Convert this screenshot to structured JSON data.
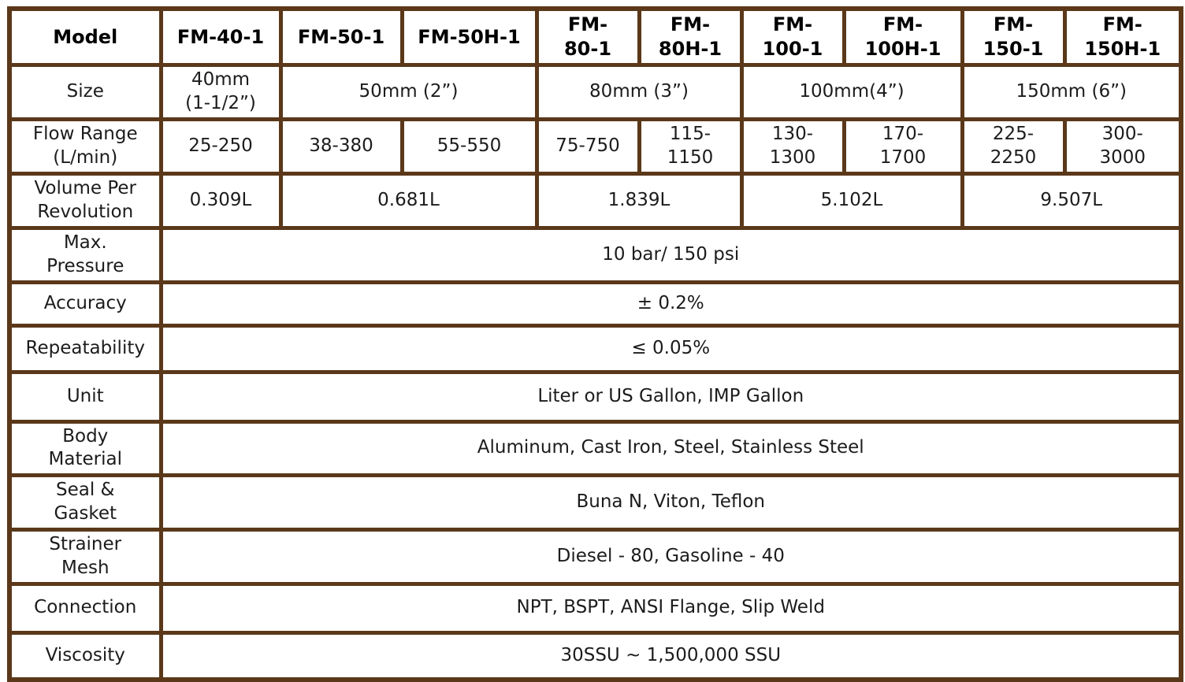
{
  "colors": {
    "border": "#5a3819",
    "text": "#1c1c1c",
    "header_text": "#000000",
    "background": "#ffffff"
  },
  "table": {
    "header_row": {
      "label": "Model",
      "cells": [
        "FM-40-1",
        "FM-50-1",
        "FM-50H-1",
        "FM-\n80-1",
        "FM-\n80H-1",
        "FM-\n100-1",
        "FM-\n100H-1",
        "FM-\n150-1",
        "FM-\n150H-1"
      ]
    },
    "size_row": {
      "label": "Size",
      "cells": [
        "40mm\n(1-1/2”)",
        "50mm (2”)",
        "80mm (3”)",
        "100mm(4”)",
        "150mm (6”)"
      ]
    },
    "flow_row": {
      "label": "Flow Range\n(L/min)",
      "cells": [
        "25-250",
        "38-380",
        "55-550",
        "75-750",
        "115-\n1150",
        "130-\n1300",
        "170-\n1700",
        "225-\n2250",
        "300-\n3000"
      ]
    },
    "volume_row": {
      "label": "Volume Per\nRevolution",
      "cells": [
        "0.309L",
        "0.681L",
        "1.839L",
        "5.102L",
        "9.507L"
      ]
    },
    "spec_rows": [
      {
        "label": "Max.\nPressure",
        "value": "10 bar/ 150 psi"
      },
      {
        "label": "Accuracy",
        "value": "±  0.2%"
      },
      {
        "label": "Repeatability",
        "value": "≤  0.05%"
      },
      {
        "label": "Unit",
        "value": "Liter or US Gallon, IMP Gallon"
      },
      {
        "label": "Body\nMaterial",
        "value": "Aluminum, Cast Iron, Steel, Stainless Steel"
      },
      {
        "label": "Seal &\nGasket",
        "value": "Buna N, Viton, Teflon"
      },
      {
        "label": "Strainer\nMesh",
        "value": "Diesel - 80, Gasoline - 40"
      },
      {
        "label": "Connection",
        "value": "NPT, BSPT, ANSI Flange, Slip Weld"
      },
      {
        "label": "Viscosity",
        "value": "30SSU ~ 1,500,000 SSU"
      }
    ]
  }
}
